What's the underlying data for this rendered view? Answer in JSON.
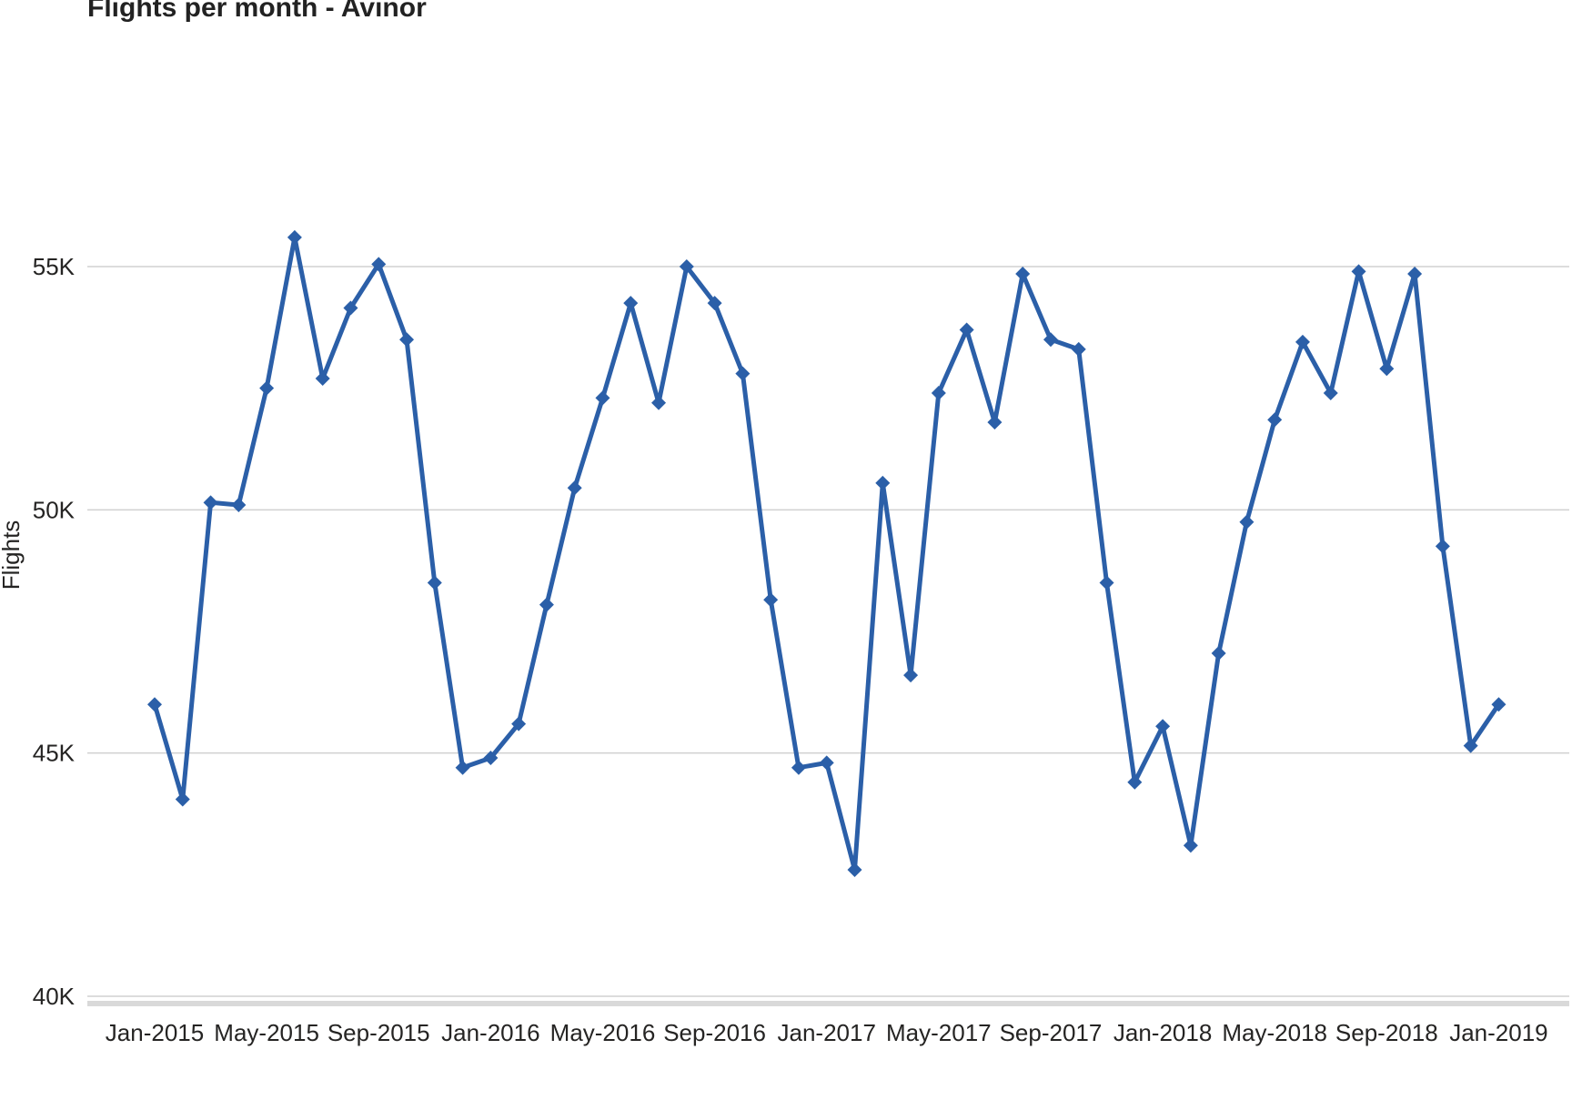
{
  "chart_data": {
    "type": "line",
    "title": "Flights per month - Avinor",
    "xlabel": "",
    "ylabel": "Flights",
    "ylim": [
      40000,
      57000
    ],
    "yticks": [
      40000,
      45000,
      50000,
      55000
    ],
    "ytick_labels": [
      "40K",
      "45K",
      "50K",
      "55K"
    ],
    "xtick_labels": [
      "Jan-2015",
      "May-2015",
      "Sep-2015",
      "Jan-2016",
      "May-2016",
      "Sep-2016",
      "Jan-2017",
      "May-2017",
      "Sep-2017",
      "Jan-2018",
      "May-2018",
      "Sep-2018",
      "Jan-2019"
    ],
    "grid": true,
    "legend": "none",
    "line_color": "#2b5fa8",
    "x": [
      "Jan-2015",
      "Feb-2015",
      "Mar-2015",
      "Apr-2015",
      "May-2015",
      "Jun-2015",
      "Jul-2015",
      "Aug-2015",
      "Sep-2015",
      "Oct-2015",
      "Nov-2015",
      "Dec-2015",
      "Jan-2016",
      "Feb-2016",
      "Mar-2016",
      "Apr-2016",
      "May-2016",
      "Jun-2016",
      "Jul-2016",
      "Aug-2016",
      "Sep-2016",
      "Oct-2016",
      "Nov-2016",
      "Dec-2016",
      "Jan-2017",
      "Feb-2017",
      "Mar-2017",
      "Apr-2017",
      "May-2017",
      "Jun-2017",
      "Jul-2017",
      "Aug-2017",
      "Sep-2017",
      "Oct-2017",
      "Nov-2017",
      "Dec-2017",
      "Jan-2018",
      "Feb-2018",
      "Mar-2018",
      "Apr-2018",
      "May-2018",
      "Jun-2018",
      "Jul-2018",
      "Aug-2018",
      "Sep-2018",
      "Oct-2018",
      "Nov-2018",
      "Dec-2018",
      "Jan-2019"
    ],
    "series": [
      {
        "values": [
          46000,
          44050,
          50150,
          50100,
          52500,
          55600,
          52700,
          54150,
          55050,
          53500,
          48500,
          44700,
          44900,
          45600,
          48050,
          50450,
          52300,
          54250,
          52200,
          55000,
          54250,
          52800,
          48150,
          44700,
          44800,
          42600,
          50550,
          46600,
          52400,
          53700,
          51800,
          54850,
          53500,
          53300,
          48500,
          44400,
          45550,
          43100,
          47050,
          49750,
          51850,
          53450,
          52400,
          54900,
          52900,
          54850,
          49250,
          45150,
          46000
        ]
      }
    ]
  }
}
